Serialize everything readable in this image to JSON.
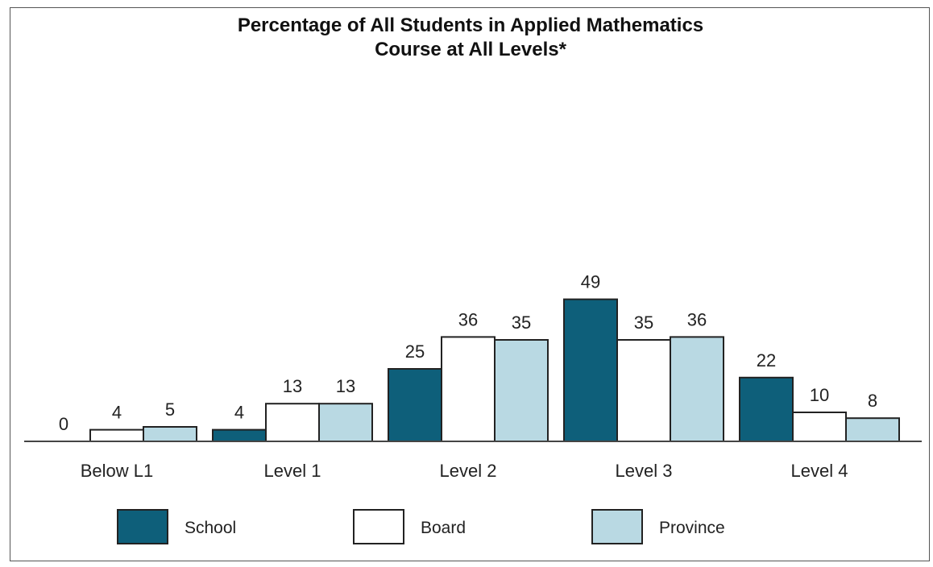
{
  "colors": {
    "school": "#0e5f7a",
    "board": "#ffffff",
    "province": "#b9d9e3",
    "stroke": "#222222",
    "axis": "#444444"
  },
  "chart_data": {
    "type": "bar",
    "title_line1": "Percentage of All Students in Applied Mathematics",
    "title_line2": "Course at All Levels*",
    "categories": [
      "Below L1",
      "Level 1",
      "Level 2",
      "Level 3",
      "Level 4"
    ],
    "series": [
      {
        "name": "School",
        "values": [
          0,
          4,
          25,
          49,
          22
        ]
      },
      {
        "name": "Board",
        "values": [
          4,
          13,
          36,
          35,
          10
        ]
      },
      {
        "name": "Province",
        "values": [
          5,
          13,
          35,
          36,
          8
        ]
      }
    ],
    "ylim": [
      0,
      100
    ],
    "grid": false,
    "legend_position": "bottom"
  }
}
